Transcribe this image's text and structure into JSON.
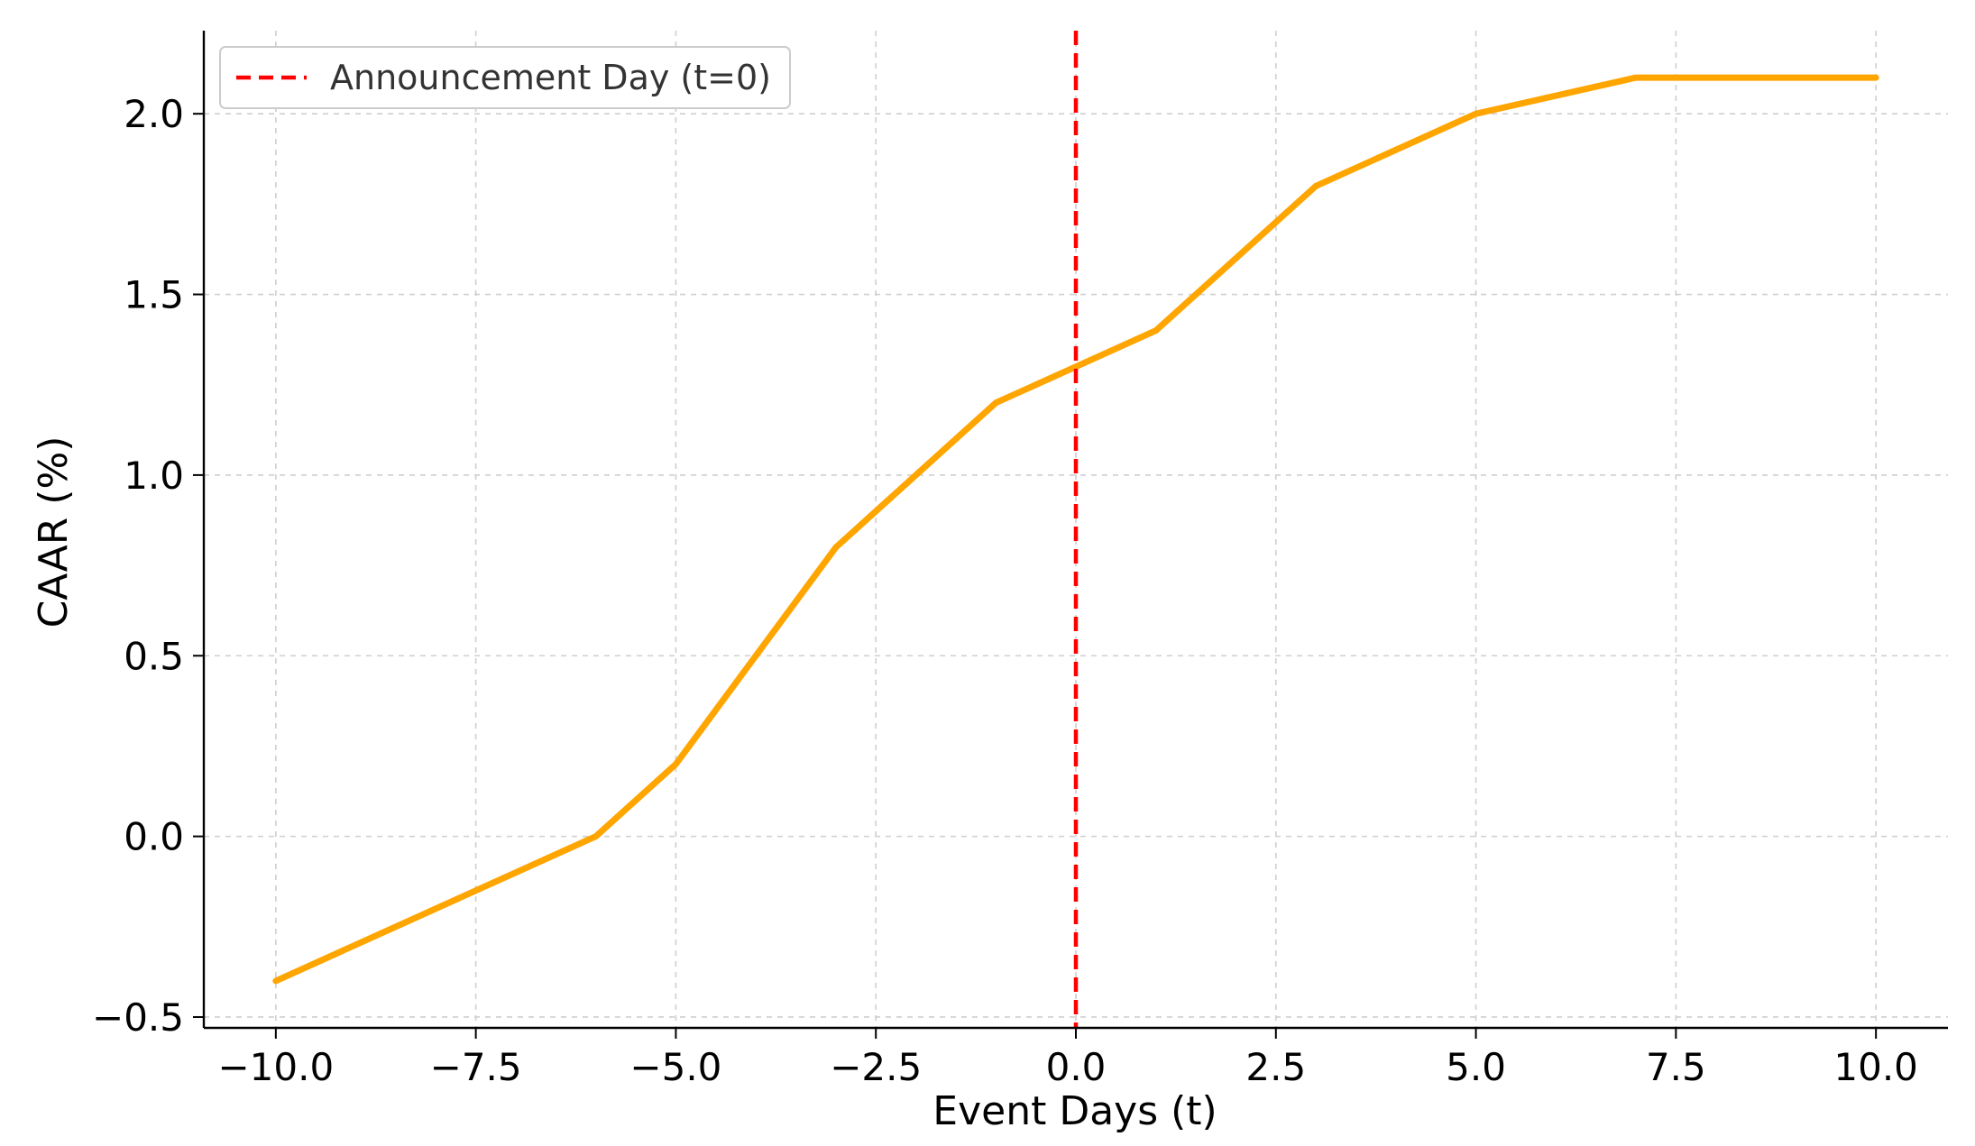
{
  "chart_data": {
    "type": "line",
    "xlabel": "Event Days (t)",
    "ylabel": "CAAR (%)",
    "xlim": [
      -10.9,
      10.9
    ],
    "ylim": [
      -0.53,
      2.23
    ],
    "xticks": [
      -10.0,
      -7.5,
      -5.0,
      -2.5,
      0.0,
      2.5,
      5.0,
      7.5,
      10.0
    ],
    "xtick_labels": [
      "−10.0",
      "−7.5",
      "−5.0",
      "−2.5",
      "0.0",
      "2.5",
      "5.0",
      "7.5",
      "10.0"
    ],
    "yticks": [
      -0.5,
      0.0,
      0.5,
      1.0,
      1.5,
      2.0
    ],
    "ytick_labels": [
      "−0.5",
      "0.0",
      "0.5",
      "1.0",
      "1.5",
      "2.0"
    ],
    "grid": true,
    "legend_position": "top-left",
    "series": [
      {
        "color": "#ffa500",
        "x": [
          -10,
          -6,
          -5,
          -3,
          -1,
          0,
          1,
          3,
          5,
          7,
          10
        ],
        "y": [
          -0.4,
          0.0,
          0.2,
          0.8,
          1.2,
          1.3,
          1.4,
          1.8,
          2.0,
          2.1,
          2.1
        ]
      }
    ],
    "vlines": [
      {
        "x": 0,
        "label": "Announcement Day (t=0)",
        "color": "#ff0000",
        "style": "dashed"
      }
    ]
  }
}
